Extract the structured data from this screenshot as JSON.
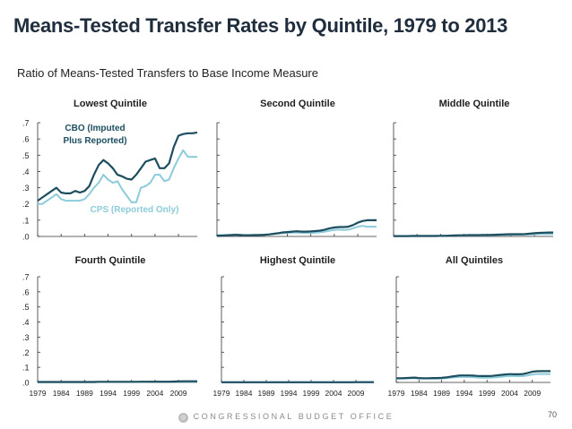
{
  "title": "Means-Tested Transfer Rates by Quintile, 1979 to 2013",
  "subtitle": "Ratio of Means-Tested Transfers to Base Income Measure",
  "footer": "CONGRESSIONAL BUDGET OFFICE",
  "page_number": "70",
  "colors": {
    "cbo": "#1d4e5f",
    "cps": "#8ccbd9",
    "axis": "#333333"
  },
  "chart_data": [
    {
      "type": "line",
      "title": "Lowest Quintile",
      "x": [
        1979,
        1980,
        1981,
        1982,
        1983,
        1984,
        1985,
        1986,
        1987,
        1988,
        1989,
        1990,
        1991,
        1992,
        1993,
        1994,
        1995,
        1996,
        1997,
        1998,
        1999,
        2000,
        2001,
        2002,
        2003,
        2004,
        2005,
        2006,
        2007,
        2008,
        2009,
        2010,
        2011,
        2012,
        2013
      ],
      "series": [
        {
          "name": "CBO (Imputed Plus Reported)",
          "values": [
            0.22,
            0.24,
            0.26,
            0.28,
            0.3,
            0.27,
            0.265,
            0.265,
            0.28,
            0.27,
            0.28,
            0.31,
            0.38,
            0.44,
            0.47,
            0.45,
            0.42,
            0.38,
            0.37,
            0.355,
            0.35,
            0.38,
            0.42,
            0.46,
            0.47,
            0.48,
            0.42,
            0.42,
            0.45,
            0.55,
            0.62,
            0.63,
            0.635,
            0.635,
            0.64
          ]
        },
        {
          "name": "CPS (Reported Only)",
          "values": [
            0.2,
            0.2,
            0.22,
            0.24,
            0.26,
            0.23,
            0.22,
            0.22,
            0.22,
            0.22,
            0.23,
            0.26,
            0.3,
            0.33,
            0.38,
            0.35,
            0.33,
            0.34,
            0.29,
            0.25,
            0.21,
            0.21,
            0.3,
            0.31,
            0.33,
            0.38,
            0.38,
            0.34,
            0.35,
            0.42,
            0.48,
            0.53,
            0.49,
            0.49,
            0.49
          ]
        }
      ],
      "annotations": [
        "CBO (Imputed",
        "Plus Reported)",
        "CPS (Reported Only)"
      ],
      "ylim": [
        0,
        0.7
      ],
      "yticks": [
        ".0",
        ".1",
        ".2",
        ".3",
        ".4",
        ".5",
        ".6",
        ".7"
      ]
    },
    {
      "type": "line",
      "title": "Second Quintile",
      "x": [
        1979,
        1980,
        1981,
        1982,
        1983,
        1984,
        1985,
        1986,
        1987,
        1988,
        1989,
        1990,
        1991,
        1992,
        1993,
        1994,
        1995,
        1996,
        1997,
        1998,
        1999,
        2000,
        2001,
        2002,
        2003,
        2004,
        2005,
        2006,
        2007,
        2008,
        2009,
        2010,
        2011,
        2012,
        2013
      ],
      "series": [
        {
          "name": "CBO (Imputed Plus Reported)",
          "values": [
            0.005,
            0.005,
            0.007,
            0.008,
            0.01,
            0.008,
            0.007,
            0.007,
            0.008,
            0.008,
            0.01,
            0.012,
            0.016,
            0.02,
            0.025,
            0.027,
            0.03,
            0.032,
            0.03,
            0.03,
            0.031,
            0.033,
            0.036,
            0.042,
            0.05,
            0.055,
            0.058,
            0.058,
            0.06,
            0.07,
            0.085,
            0.095,
            0.1,
            0.1,
            0.1
          ]
        },
        {
          "name": "CPS (Reported Only)",
          "values": [
            0.008,
            0.008,
            0.009,
            0.01,
            0.012,
            0.01,
            0.009,
            0.009,
            0.01,
            0.01,
            0.011,
            0.013,
            0.016,
            0.018,
            0.02,
            0.022,
            0.023,
            0.024,
            0.022,
            0.022,
            0.022,
            0.023,
            0.026,
            0.03,
            0.035,
            0.04,
            0.042,
            0.04,
            0.042,
            0.05,
            0.06,
            0.065,
            0.06,
            0.06,
            0.06
          ]
        }
      ],
      "ylim": [
        0,
        0.7
      ]
    },
    {
      "type": "line",
      "title": "Middle Quintile",
      "x": [
        1979,
        1980,
        1981,
        1982,
        1983,
        1984,
        1985,
        1986,
        1987,
        1988,
        1989,
        1990,
        1991,
        1992,
        1993,
        1994,
        1995,
        1996,
        1997,
        1998,
        1999,
        2000,
        2001,
        2002,
        2003,
        2004,
        2005,
        2006,
        2007,
        2008,
        2009,
        2010,
        2011,
        2012,
        2013
      ],
      "series": [
        {
          "name": "CBO (Imputed Plus Reported)",
          "values": [
            0.002,
            0.002,
            0.002,
            0.002,
            0.003,
            0.003,
            0.003,
            0.003,
            0.003,
            0.003,
            0.004,
            0.004,
            0.005,
            0.006,
            0.007,
            0.007,
            0.008,
            0.008,
            0.008,
            0.009,
            0.009,
            0.01,
            0.011,
            0.012,
            0.013,
            0.014,
            0.014,
            0.014,
            0.015,
            0.017,
            0.02,
            0.022,
            0.023,
            0.024,
            0.024
          ]
        },
        {
          "name": "CPS (Reported Only)",
          "values": [
            0.003,
            0.003,
            0.003,
            0.003,
            0.004,
            0.004,
            0.004,
            0.004,
            0.004,
            0.004,
            0.004,
            0.005,
            0.005,
            0.006,
            0.006,
            0.006,
            0.007,
            0.007,
            0.007,
            0.007,
            0.007,
            0.008,
            0.008,
            0.009,
            0.01,
            0.01,
            0.011,
            0.011,
            0.011,
            0.012,
            0.014,
            0.015,
            0.015,
            0.015,
            0.015
          ]
        }
      ],
      "ylim": [
        0,
        0.7
      ]
    },
    {
      "type": "line",
      "title": "Fourth Quintile",
      "x": [
        1979,
        1980,
        1981,
        1982,
        1983,
        1984,
        1985,
        1986,
        1987,
        1988,
        1989,
        1990,
        1991,
        1992,
        1993,
        1994,
        1995,
        1996,
        1997,
        1998,
        1999,
        2000,
        2001,
        2002,
        2003,
        2004,
        2005,
        2006,
        2007,
        2008,
        2009,
        2010,
        2011,
        2012,
        2013
      ],
      "series": [
        {
          "name": "CBO (Imputed Plus Reported)",
          "values": [
            0.003,
            0.003,
            0.003,
            0.003,
            0.003,
            0.003,
            0.003,
            0.003,
            0.003,
            0.003,
            0.003,
            0.003,
            0.003,
            0.004,
            0.004,
            0.004,
            0.004,
            0.004,
            0.004,
            0.004,
            0.004,
            0.004,
            0.005,
            0.005,
            0.005,
            0.005,
            0.005,
            0.005,
            0.005,
            0.006,
            0.007,
            0.008,
            0.008,
            0.008,
            0.008
          ]
        },
        {
          "name": "CPS (Reported Only)",
          "values": [
            0.002,
            0.002,
            0.002,
            0.002,
            0.002,
            0.002,
            0.002,
            0.002,
            0.002,
            0.002,
            0.002,
            0.002,
            0.002,
            0.003,
            0.003,
            0.003,
            0.003,
            0.003,
            0.003,
            0.003,
            0.003,
            0.003,
            0.003,
            0.003,
            0.004,
            0.004,
            0.004,
            0.004,
            0.004,
            0.004,
            0.005,
            0.005,
            0.005,
            0.005,
            0.005
          ]
        }
      ],
      "xticks": [
        "1979",
        "1984",
        "1989",
        "1994",
        "1999",
        "2004",
        "2009"
      ],
      "ylim": [
        0,
        0.7
      ],
      "yticks": [
        ".0",
        ".1",
        ".2",
        ".3",
        ".4",
        ".5",
        ".6",
        ".7"
      ]
    },
    {
      "type": "line",
      "title": "Highest Quintile",
      "x": [
        1979,
        1980,
        1981,
        1982,
        1983,
        1984,
        1985,
        1986,
        1987,
        1988,
        1989,
        1990,
        1991,
        1992,
        1993,
        1994,
        1995,
        1996,
        1997,
        1998,
        1999,
        2000,
        2001,
        2002,
        2003,
        2004,
        2005,
        2006,
        2007,
        2008,
        2009,
        2010,
        2011,
        2012,
        2013
      ],
      "series": [
        {
          "name": "CBO (Imputed Plus Reported)",
          "values": [
            0.001,
            0.001,
            0.001,
            0.001,
            0.001,
            0.001,
            0.001,
            0.001,
            0.001,
            0.001,
            0.001,
            0.001,
            0.001,
            0.001,
            0.001,
            0.001,
            0.001,
            0.001,
            0.001,
            0.001,
            0.001,
            0.001,
            0.001,
            0.001,
            0.001,
            0.001,
            0.001,
            0.001,
            0.001,
            0.001,
            0.002,
            0.002,
            0.002,
            0.002,
            0.002
          ]
        },
        {
          "name": "CPS (Reported Only)",
          "values": [
            0.001,
            0.001,
            0.001,
            0.001,
            0.001,
            0.001,
            0.001,
            0.001,
            0.001,
            0.001,
            0.001,
            0.001,
            0.001,
            0.001,
            0.001,
            0.001,
            0.001,
            0.001,
            0.001,
            0.001,
            0.001,
            0.001,
            0.001,
            0.001,
            0.001,
            0.001,
            0.001,
            0.001,
            0.001,
            0.001,
            0.001,
            0.001,
            0.001,
            0.001,
            0.001
          ]
        }
      ],
      "xticks": [
        "1979",
        "1984",
        "1989",
        "1994",
        "1999",
        "2004",
        "2009"
      ],
      "ylim": [
        0,
        0.7
      ]
    },
    {
      "type": "line",
      "title": "All Quintiles",
      "x": [
        1979,
        1980,
        1981,
        1982,
        1983,
        1984,
        1985,
        1986,
        1987,
        1988,
        1989,
        1990,
        1991,
        1992,
        1993,
        1994,
        1995,
        1996,
        1997,
        1998,
        1999,
        2000,
        2001,
        2002,
        2003,
        2004,
        2005,
        2006,
        2007,
        2008,
        2009,
        2010,
        2011,
        2012,
        2013
      ],
      "series": [
        {
          "name": "CBO (Imputed Plus Reported)",
          "values": [
            0.028,
            0.028,
            0.029,
            0.03,
            0.032,
            0.029,
            0.028,
            0.028,
            0.029,
            0.029,
            0.03,
            0.033,
            0.038,
            0.042,
            0.046,
            0.046,
            0.046,
            0.045,
            0.043,
            0.042,
            0.042,
            0.043,
            0.046,
            0.05,
            0.053,
            0.055,
            0.054,
            0.054,
            0.056,
            0.063,
            0.071,
            0.074,
            0.075,
            0.075,
            0.075
          ]
        },
        {
          "name": "CPS (Reported Only)",
          "values": [
            0.025,
            0.025,
            0.026,
            0.027,
            0.028,
            0.026,
            0.025,
            0.025,
            0.025,
            0.025,
            0.026,
            0.028,
            0.031,
            0.034,
            0.036,
            0.036,
            0.035,
            0.034,
            0.032,
            0.031,
            0.031,
            0.032,
            0.034,
            0.037,
            0.04,
            0.042,
            0.042,
            0.041,
            0.042,
            0.047,
            0.053,
            0.056,
            0.056,
            0.056,
            0.056
          ]
        }
      ],
      "xticks": [
        "1979",
        "1984",
        "1989",
        "1994",
        "1999",
        "2004",
        "2009"
      ],
      "ylim": [
        0,
        0.7
      ]
    }
  ]
}
